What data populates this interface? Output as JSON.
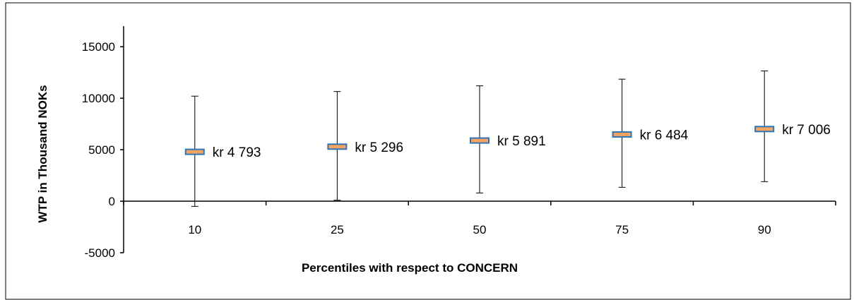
{
  "chart_data": {
    "type": "scatter",
    "title": "",
    "xlabel": "Percentiles with respect to CONCERN",
    "ylabel": "WTP in Thousand NOKs",
    "ylim": [
      -5000,
      17000
    ],
    "yticks": [
      -5000,
      0,
      5000,
      10000,
      15000
    ],
    "ytick_labels": [
      "-5000",
      "0",
      "5000",
      "10000",
      "15000"
    ],
    "grid": false,
    "legend": "none",
    "categories": [
      "10",
      "25",
      "50",
      "75",
      "90"
    ],
    "points": [
      {
        "x": "10",
        "y": 4793,
        "low": -500,
        "high": 10200,
        "label": "kr 4 793"
      },
      {
        "x": "25",
        "y": 5296,
        "low": 100,
        "high": 10650,
        "label": "kr 5 296"
      },
      {
        "x": "50",
        "y": 5891,
        "low": 800,
        "high": 11200,
        "label": "kr 5 891"
      },
      {
        "x": "75",
        "y": 6484,
        "low": 1350,
        "high": 11850,
        "label": "kr 6 484"
      },
      {
        "x": "90",
        "y": 7006,
        "low": 1900,
        "high": 12650,
        "label": "kr 7 006"
      }
    ],
    "colors": {
      "marker_fill": "#F4A460",
      "marker_border": "#2E75B6",
      "axis": "#000000",
      "frame": "#000000"
    }
  }
}
